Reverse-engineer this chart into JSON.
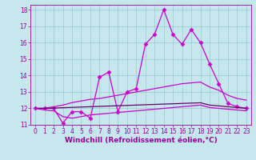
{
  "title": "",
  "xlabel": "Windchill (Refroidissement éolien,°C)",
  "ylabel": "",
  "background_color": "#c5e8ef",
  "xlim": [
    -0.5,
    23.5
  ],
  "ylim": [
    11,
    18.3
  ],
  "yticks": [
    11,
    12,
    13,
    14,
    15,
    16,
    17,
    18
  ],
  "xticks": [
    0,
    1,
    2,
    3,
    4,
    5,
    6,
    7,
    8,
    9,
    10,
    11,
    12,
    13,
    14,
    15,
    16,
    17,
    18,
    19,
    20,
    21,
    22,
    23
  ],
  "series": [
    {
      "x": [
        0,
        1,
        2,
        3,
        4,
        5,
        6,
        7,
        8,
        9,
        10,
        11,
        12,
        13,
        14,
        15,
        16,
        17,
        18,
        19,
        20,
        21,
        22,
        23
      ],
      "y": [
        12.0,
        12.0,
        12.0,
        11.1,
        11.8,
        11.8,
        11.4,
        13.9,
        14.2,
        11.8,
        13.0,
        13.2,
        15.9,
        16.5,
        18.0,
        16.5,
        15.9,
        16.8,
        16.0,
        14.7,
        13.5,
        12.3,
        12.1,
        12.0
      ],
      "color": "#cc00cc",
      "marker": "D",
      "markersize": 2.5,
      "linewidth": 0.9
    },
    {
      "x": [
        0,
        1,
        2,
        3,
        4,
        5,
        6,
        7,
        8,
        9,
        10,
        11,
        12,
        13,
        14,
        15,
        16,
        17,
        18,
        19,
        20,
        21,
        22,
        23
      ],
      "y": [
        12.0,
        12.0,
        12.1,
        12.2,
        12.35,
        12.45,
        12.55,
        12.6,
        12.7,
        12.8,
        12.9,
        13.0,
        13.1,
        13.2,
        13.3,
        13.4,
        13.5,
        13.55,
        13.6,
        13.3,
        13.1,
        12.8,
        12.6,
        12.5
      ],
      "color": "#cc00cc",
      "marker": null,
      "markersize": 0,
      "linewidth": 0.9
    },
    {
      "x": [
        0,
        1,
        2,
        3,
        4,
        5,
        6,
        7,
        8,
        9,
        10,
        11,
        12,
        13,
        14,
        15,
        16,
        17,
        18,
        19,
        20,
        21,
        22,
        23
      ],
      "y": [
        12.0,
        12.0,
        12.02,
        12.04,
        12.06,
        12.08,
        12.1,
        12.12,
        12.14,
        12.16,
        12.18,
        12.2,
        12.22,
        12.24,
        12.26,
        12.28,
        12.3,
        12.32,
        12.34,
        12.2,
        12.15,
        12.1,
        12.05,
        12.0
      ],
      "color": "#660066",
      "marker": null,
      "markersize": 0,
      "linewidth": 0.9
    },
    {
      "x": [
        0,
        1,
        2,
        3,
        4,
        5,
        6,
        7,
        8,
        9,
        10,
        11,
        12,
        13,
        14,
        15,
        16,
        17,
        18,
        19,
        20,
        21,
        22,
        23
      ],
      "y": [
        12.0,
        11.9,
        11.85,
        11.5,
        11.4,
        11.5,
        11.6,
        11.65,
        11.7,
        11.75,
        11.8,
        11.85,
        11.9,
        11.95,
        12.0,
        12.05,
        12.1,
        12.15,
        12.2,
        12.05,
        12.0,
        11.95,
        11.9,
        11.85
      ],
      "color": "#cc00cc",
      "marker": null,
      "markersize": 0,
      "linewidth": 0.9
    }
  ],
  "grid_color": "#9ec8cc",
  "grid_linewidth": 0.5,
  "tick_color": "#990099",
  "tick_fontsize": 5.5,
  "xlabel_fontsize": 6.5,
  "xlabel_color": "#990099",
  "xlabel_fontweight": "bold"
}
